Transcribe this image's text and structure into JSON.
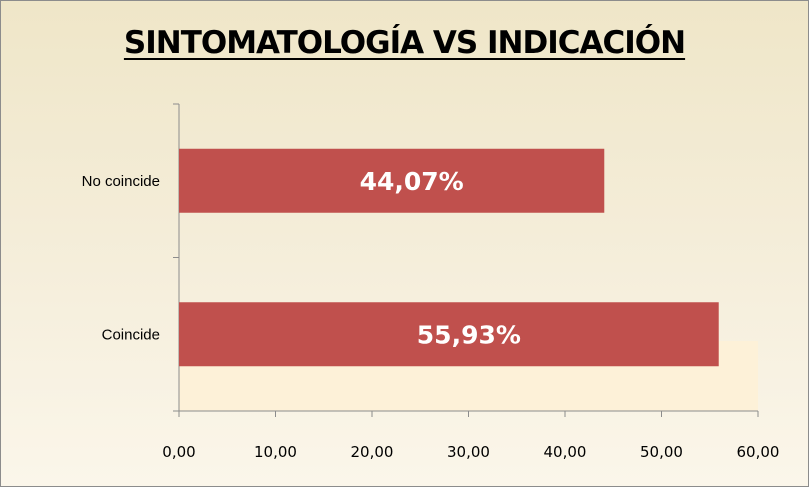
{
  "chart_data": {
    "type": "bar",
    "orientation": "horizontal",
    "title": "SINTOMATOLOGÍA VS INDICACIÓN",
    "categories": [
      "Coincide",
      "No coincide"
    ],
    "values": [
      55.93,
      44.07
    ],
    "data_labels": [
      "55,93%",
      "44,07%"
    ],
    "xlim": [
      0,
      60
    ],
    "x_ticks": [
      "0,00",
      "10,00",
      "20,00",
      "30,00",
      "40,00",
      "50,00",
      "60,00"
    ],
    "xlabel": "",
    "ylabel": "",
    "grid": false,
    "legend": "none",
    "bar_color": "#c0504d"
  }
}
